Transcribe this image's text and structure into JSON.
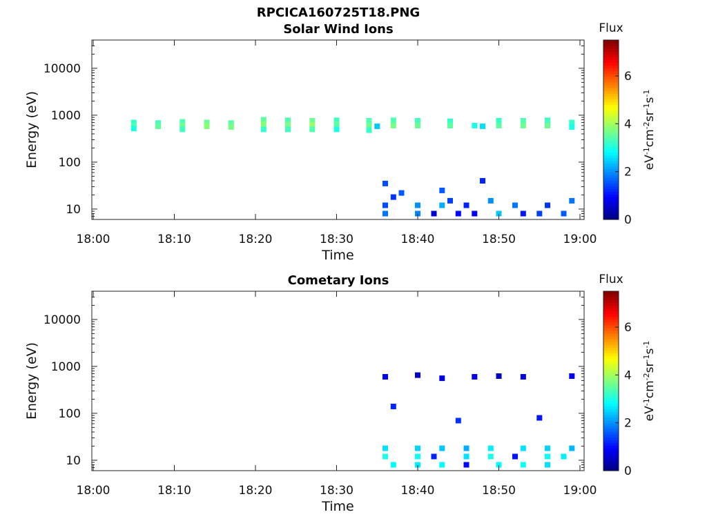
{
  "figure_title": "RPCICA160725T18.PNG",
  "colorbar": {
    "title": "Flux",
    "unit_label": "eV-1cm-2sr-1s-1",
    "ticks": [
      "0",
      "2",
      "4",
      "6"
    ],
    "range": [
      0,
      7.5
    ],
    "colormap": "jet"
  },
  "chart_data": [
    {
      "type": "heatmap",
      "title": "Solar Wind Ions",
      "xlabel": "Time",
      "ylabel": "Energy (eV)",
      "xticks": [
        "18:00",
        "18:10",
        "18:20",
        "18:30",
        "18:40",
        "18:50",
        "19:00"
      ],
      "yticks": [
        "10",
        "100",
        "1000",
        "10000"
      ],
      "ylim": [
        6,
        40000
      ],
      "yscale": "log",
      "grid": false,
      "cells": [
        [
          "18:05",
          700,
          3.2
        ],
        [
          "18:05",
          600,
          3.4
        ],
        [
          "18:05",
          520,
          3.0
        ],
        [
          "18:08",
          680,
          3.3
        ],
        [
          "18:08",
          580,
          3.5
        ],
        [
          "18:11",
          720,
          3.4
        ],
        [
          "18:11",
          600,
          3.6
        ],
        [
          "18:11",
          500,
          3.3
        ],
        [
          "18:14",
          700,
          3.6
        ],
        [
          "18:14",
          580,
          3.8
        ],
        [
          "18:17",
          680,
          3.5
        ],
        [
          "18:17",
          560,
          3.7
        ],
        [
          "18:21",
          800,
          3.5
        ],
        [
          "18:21",
          650,
          3.8
        ],
        [
          "18:21",
          500,
          3.2
        ],
        [
          "18:24",
          780,
          3.4
        ],
        [
          "18:24",
          620,
          3.7
        ],
        [
          "18:24",
          500,
          3.3
        ],
        [
          "18:27",
          760,
          3.6
        ],
        [
          "18:27",
          620,
          3.9
        ],
        [
          "18:27",
          500,
          3.4
        ],
        [
          "18:30",
          780,
          3.3
        ],
        [
          "18:30",
          640,
          3.5
        ],
        [
          "18:30",
          500,
          3.0
        ],
        [
          "18:34",
          760,
          3.4
        ],
        [
          "18:34",
          600,
          3.6
        ],
        [
          "18:34",
          480,
          3.2
        ],
        [
          "18:35",
          580,
          2.4
        ],
        [
          "18:37",
          780,
          3.4
        ],
        [
          "18:37",
          600,
          3.7
        ],
        [
          "18:40",
          760,
          3.3
        ],
        [
          "18:40",
          600,
          3.6
        ],
        [
          "18:44",
          740,
          3.2
        ],
        [
          "18:44",
          600,
          3.5
        ],
        [
          "18:47",
          600,
          3.0
        ],
        [
          "18:48",
          580,
          2.6
        ],
        [
          "18:50",
          760,
          3.2
        ],
        [
          "18:50",
          600,
          3.5
        ],
        [
          "18:53",
          760,
          3.4
        ],
        [
          "18:53",
          600,
          3.6
        ],
        [
          "18:56",
          780,
          3.3
        ],
        [
          "18:56",
          600,
          3.6
        ],
        [
          "18:59",
          700,
          3.2
        ],
        [
          "18:59",
          560,
          3.0
        ],
        [
          "18:36",
          8,
          1.8
        ],
        [
          "18:36",
          12,
          1.5
        ],
        [
          "18:37",
          18,
          1.3
        ],
        [
          "18:38",
          22,
          1.6
        ],
        [
          "18:40",
          8,
          1.9
        ],
        [
          "18:40",
          12,
          2.0
        ],
        [
          "18:42",
          8,
          0.6
        ],
        [
          "18:43",
          12,
          2.2
        ],
        [
          "18:44",
          15,
          1.4
        ],
        [
          "18:45",
          8,
          1.0
        ],
        [
          "18:46",
          12,
          1.2
        ],
        [
          "18:47",
          8,
          0.9
        ],
        [
          "18:49",
          15,
          2.0
        ],
        [
          "18:50",
          8,
          2.4
        ],
        [
          "18:52",
          12,
          1.8
        ],
        [
          "18:53",
          8,
          1.1
        ],
        [
          "18:55",
          8,
          1.4
        ],
        [
          "18:56",
          12,
          1.3
        ],
        [
          "18:58",
          8,
          1.6
        ],
        [
          "18:59",
          15,
          1.8
        ],
        [
          "18:36",
          35,
          1.5
        ],
        [
          "18:43",
          25,
          1.6
        ],
        [
          "18:48",
          40,
          1.2
        ]
      ]
    },
    {
      "type": "heatmap",
      "title": "Cometary Ions",
      "xlabel": "Time",
      "ylabel": "Energy (eV)",
      "xticks": [
        "18:00",
        "18:10",
        "18:20",
        "18:30",
        "18:40",
        "18:50",
        "19:00"
      ],
      "yticks": [
        "10",
        "100",
        "1000",
        "10000"
      ],
      "ylim": [
        6,
        40000
      ],
      "yscale": "log",
      "grid": false,
      "cells": [
        [
          "18:36",
          18,
          2.6
        ],
        [
          "18:36",
          12,
          3.0
        ],
        [
          "18:37",
          8,
          2.8
        ],
        [
          "18:40",
          18,
          2.5
        ],
        [
          "18:40",
          12,
          2.9
        ],
        [
          "18:40",
          8,
          2.7
        ],
        [
          "18:42",
          12,
          1.2
        ],
        [
          "18:43",
          18,
          2.4
        ],
        [
          "18:43",
          8,
          2.8
        ],
        [
          "18:46",
          18,
          2.2
        ],
        [
          "18:46",
          12,
          2.6
        ],
        [
          "18:46",
          8,
          1.0
        ],
        [
          "18:49",
          18,
          2.7
        ],
        [
          "18:49",
          12,
          3.0
        ],
        [
          "18:50",
          8,
          2.8
        ],
        [
          "18:52",
          12,
          1.1
        ],
        [
          "18:53",
          18,
          2.6
        ],
        [
          "18:53",
          8,
          2.9
        ],
        [
          "18:56",
          18,
          2.5
        ],
        [
          "18:56",
          12,
          2.9
        ],
        [
          "18:56",
          8,
          2.6
        ],
        [
          "18:58",
          12,
          2.7
        ],
        [
          "18:59",
          18,
          2.3
        ],
        [
          "18:36",
          600,
          0.8
        ],
        [
          "18:40",
          650,
          0.6
        ],
        [
          "18:43",
          560,
          0.7
        ],
        [
          "18:47",
          600,
          0.8
        ],
        [
          "18:50",
          620,
          0.5
        ],
        [
          "18:53",
          600,
          0.6
        ],
        [
          "18:59",
          620,
          0.9
        ],
        [
          "18:37",
          140,
          1.2
        ],
        [
          "18:45",
          70,
          1.3
        ],
        [
          "18:55",
          80,
          1.1
        ]
      ]
    }
  ]
}
